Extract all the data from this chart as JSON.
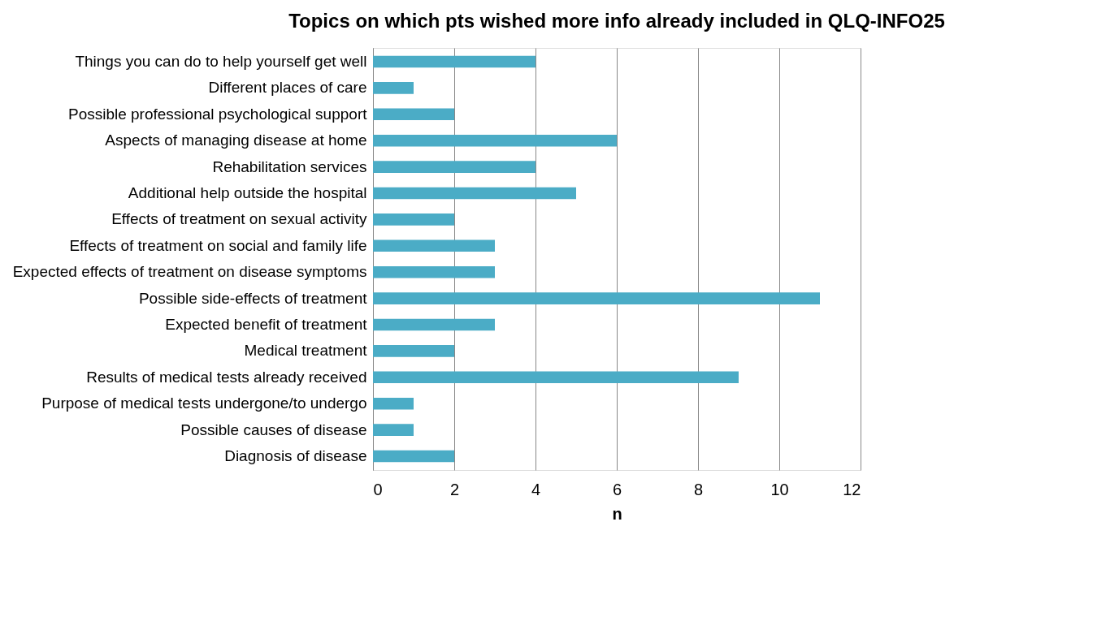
{
  "chart_data": {
    "type": "bar",
    "orientation": "horizontal",
    "title": "Topics on which pts wished more info already included in QLQ-INFO25",
    "xlabel": "n",
    "categories": [
      "Things you can do to help yourself get well",
      "Different places of care",
      "Possible professional psychological support",
      "Aspects of managing disease at home",
      "Rehabilitation services",
      "Additional help outside the hospital",
      "Effects of treatment on sexual activity",
      "Effects of treatment on social and family life",
      "Expected effects of treatment on disease symptoms",
      "Possible side-effects of treatment",
      "Expected benefit of treatment",
      "Medical treatment",
      "Results of medical tests already received",
      "Purpose of medical tests undergone/to undergo",
      "Possible causes of disease",
      "Diagnosis of disease"
    ],
    "values": [
      4,
      1,
      2,
      6,
      4,
      5,
      2,
      3,
      3,
      11,
      3,
      2,
      9,
      1,
      1,
      2
    ],
    "color": "#4bacc6",
    "xlim": [
      0,
      12
    ],
    "xticks": [
      0,
      2,
      4,
      6,
      8,
      10,
      12
    ],
    "grid": "x"
  }
}
